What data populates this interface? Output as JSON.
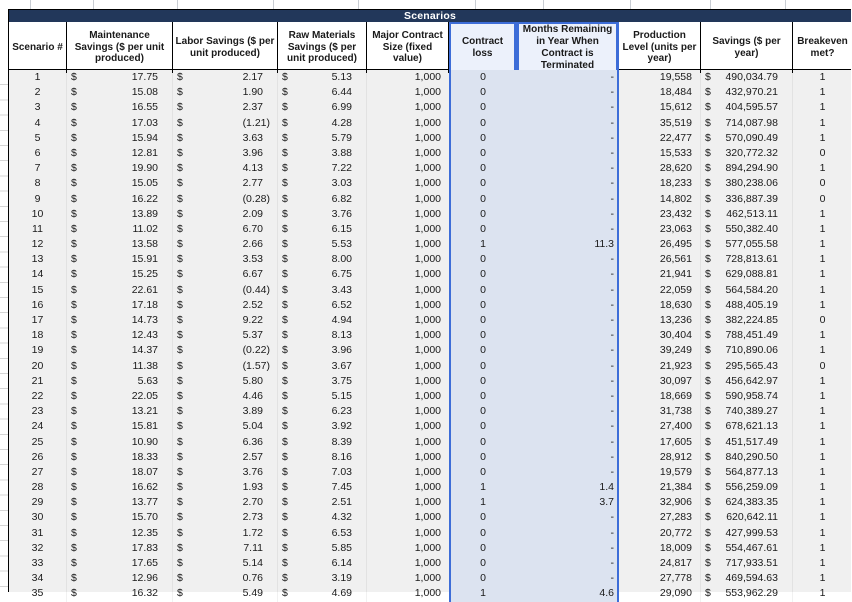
{
  "title": "Scenarios",
  "currency_symbol": "$",
  "columns": [
    "Scenario #",
    "Maintenance Savings ($ per unit produced)",
    "Labor Savings ($ per unit produced)",
    "Raw Materials Savings ($ per unit produced)",
    "Major Contract Size (fixed value)",
    "Contract loss",
    "Months Remaining in Year When Contract is Terminated",
    "Production Level (units per year)",
    "Savings ($ per year)",
    "Breakeven met?"
  ],
  "rows": [
    [
      "1",
      "17.75",
      "2.17",
      "5.13",
      "1,000",
      "0",
      "-",
      "19,558",
      "490,034.79",
      "1"
    ],
    [
      "2",
      "15.08",
      "1.90",
      "6.44",
      "1,000",
      "0",
      "-",
      "18,484",
      "432,970.21",
      "1"
    ],
    [
      "3",
      "16.55",
      "2.37",
      "6.99",
      "1,000",
      "0",
      "-",
      "15,612",
      "404,595.57",
      "1"
    ],
    [
      "4",
      "17.03",
      "(1.21)",
      "4.28",
      "1,000",
      "0",
      "-",
      "35,519",
      "714,087.98",
      "1"
    ],
    [
      "5",
      "15.94",
      "3.63",
      "5.79",
      "1,000",
      "0",
      "-",
      "22,477",
      "570,090.49",
      "1"
    ],
    [
      "6",
      "12.81",
      "3.96",
      "3.88",
      "1,000",
      "0",
      "-",
      "15,533",
      "320,772.32",
      "0"
    ],
    [
      "7",
      "19.90",
      "4.13",
      "7.22",
      "1,000",
      "0",
      "-",
      "28,620",
      "894,294.90",
      "1"
    ],
    [
      "8",
      "15.05",
      "2.77",
      "3.03",
      "1,000",
      "0",
      "-",
      "18,233",
      "380,238.06",
      "0"
    ],
    [
      "9",
      "16.22",
      "(0.28)",
      "6.82",
      "1,000",
      "0",
      "-",
      "14,802",
      "336,887.39",
      "0"
    ],
    [
      "10",
      "13.89",
      "2.09",
      "3.76",
      "1,000",
      "0",
      "-",
      "23,432",
      "462,513.11",
      "1"
    ],
    [
      "11",
      "11.02",
      "6.70",
      "6.15",
      "1,000",
      "0",
      "-",
      "23,063",
      "550,382.40",
      "1"
    ],
    [
      "12",
      "13.58",
      "2.66",
      "5.53",
      "1,000",
      "1",
      "11.3",
      "26,495",
      "577,055.58",
      "1"
    ],
    [
      "13",
      "15.91",
      "3.53",
      "8.00",
      "1,000",
      "0",
      "-",
      "26,561",
      "728,813.61",
      "1"
    ],
    [
      "14",
      "15.25",
      "6.67",
      "6.75",
      "1,000",
      "0",
      "-",
      "21,941",
      "629,088.81",
      "1"
    ],
    [
      "15",
      "22.61",
      "(0.44)",
      "3.43",
      "1,000",
      "0",
      "-",
      "22,059",
      "564,584.20",
      "1"
    ],
    [
      "16",
      "17.18",
      "2.52",
      "6.52",
      "1,000",
      "0",
      "-",
      "18,630",
      "488,405.19",
      "1"
    ],
    [
      "17",
      "14.73",
      "9.22",
      "4.94",
      "1,000",
      "0",
      "-",
      "13,236",
      "382,224.85",
      "0"
    ],
    [
      "18",
      "12.43",
      "5.37",
      "8.13",
      "1,000",
      "0",
      "-",
      "30,404",
      "788,451.49",
      "1"
    ],
    [
      "19",
      "14.37",
      "(0.22)",
      "3.96",
      "1,000",
      "0",
      "-",
      "39,249",
      "710,890.06",
      "1"
    ],
    [
      "20",
      "11.38",
      "(1.57)",
      "3.67",
      "1,000",
      "0",
      "-",
      "21,923",
      "295,565.43",
      "0"
    ],
    [
      "21",
      "5.63",
      "5.80",
      "3.75",
      "1,000",
      "0",
      "-",
      "30,097",
      "456,642.97",
      "1"
    ],
    [
      "22",
      "22.05",
      "4.46",
      "5.15",
      "1,000",
      "0",
      "-",
      "18,669",
      "590,958.74",
      "1"
    ],
    [
      "23",
      "13.21",
      "3.89",
      "6.23",
      "1,000",
      "0",
      "-",
      "31,738",
      "740,389.27",
      "1"
    ],
    [
      "24",
      "15.81",
      "5.04",
      "3.92",
      "1,000",
      "0",
      "-",
      "27,400",
      "678,621.13",
      "1"
    ],
    [
      "25",
      "10.90",
      "6.36",
      "8.39",
      "1,000",
      "0",
      "-",
      "17,605",
      "451,517.49",
      "1"
    ],
    [
      "26",
      "18.33",
      "2.57",
      "8.16",
      "1,000",
      "0",
      "-",
      "28,912",
      "840,290.50",
      "1"
    ],
    [
      "27",
      "18.07",
      "3.76",
      "7.03",
      "1,000",
      "0",
      "-",
      "19,579",
      "564,877.13",
      "1"
    ],
    [
      "28",
      "16.62",
      "1.93",
      "7.45",
      "1,000",
      "1",
      "1.4",
      "21,384",
      "556,259.09",
      "1"
    ],
    [
      "29",
      "13.77",
      "2.70",
      "2.51",
      "1,000",
      "1",
      "3.7",
      "32,906",
      "624,383.35",
      "1"
    ],
    [
      "30",
      "15.70",
      "2.73",
      "4.32",
      "1,000",
      "0",
      "-",
      "27,283",
      "620,642.11",
      "1"
    ],
    [
      "31",
      "12.35",
      "1.72",
      "6.53",
      "1,000",
      "0",
      "-",
      "20,772",
      "427,999.53",
      "1"
    ],
    [
      "32",
      "17.83",
      "7.11",
      "5.85",
      "1,000",
      "0",
      "-",
      "18,009",
      "554,467.61",
      "1"
    ],
    [
      "33",
      "17.65",
      "5.14",
      "6.14",
      "1,000",
      "0",
      "-",
      "24,817",
      "717,933.51",
      "1"
    ],
    [
      "34",
      "12.96",
      "0.76",
      "3.19",
      "1,000",
      "0",
      "-",
      "27,778",
      "469,594.63",
      "1"
    ],
    [
      "35",
      "16.32",
      "5.49",
      "4.69",
      "1,000",
      "1",
      "4.6",
      "29,090",
      "553,962.29",
      "1"
    ]
  ],
  "colors": {
    "title_bar_navy": "#22375A",
    "selection_border_blue": "#3D6DD8",
    "selection_fill_blue": "#DCE3F0",
    "selection_header_fill": "#ECF1FB",
    "table_body_gray": "#F0F0F0"
  }
}
